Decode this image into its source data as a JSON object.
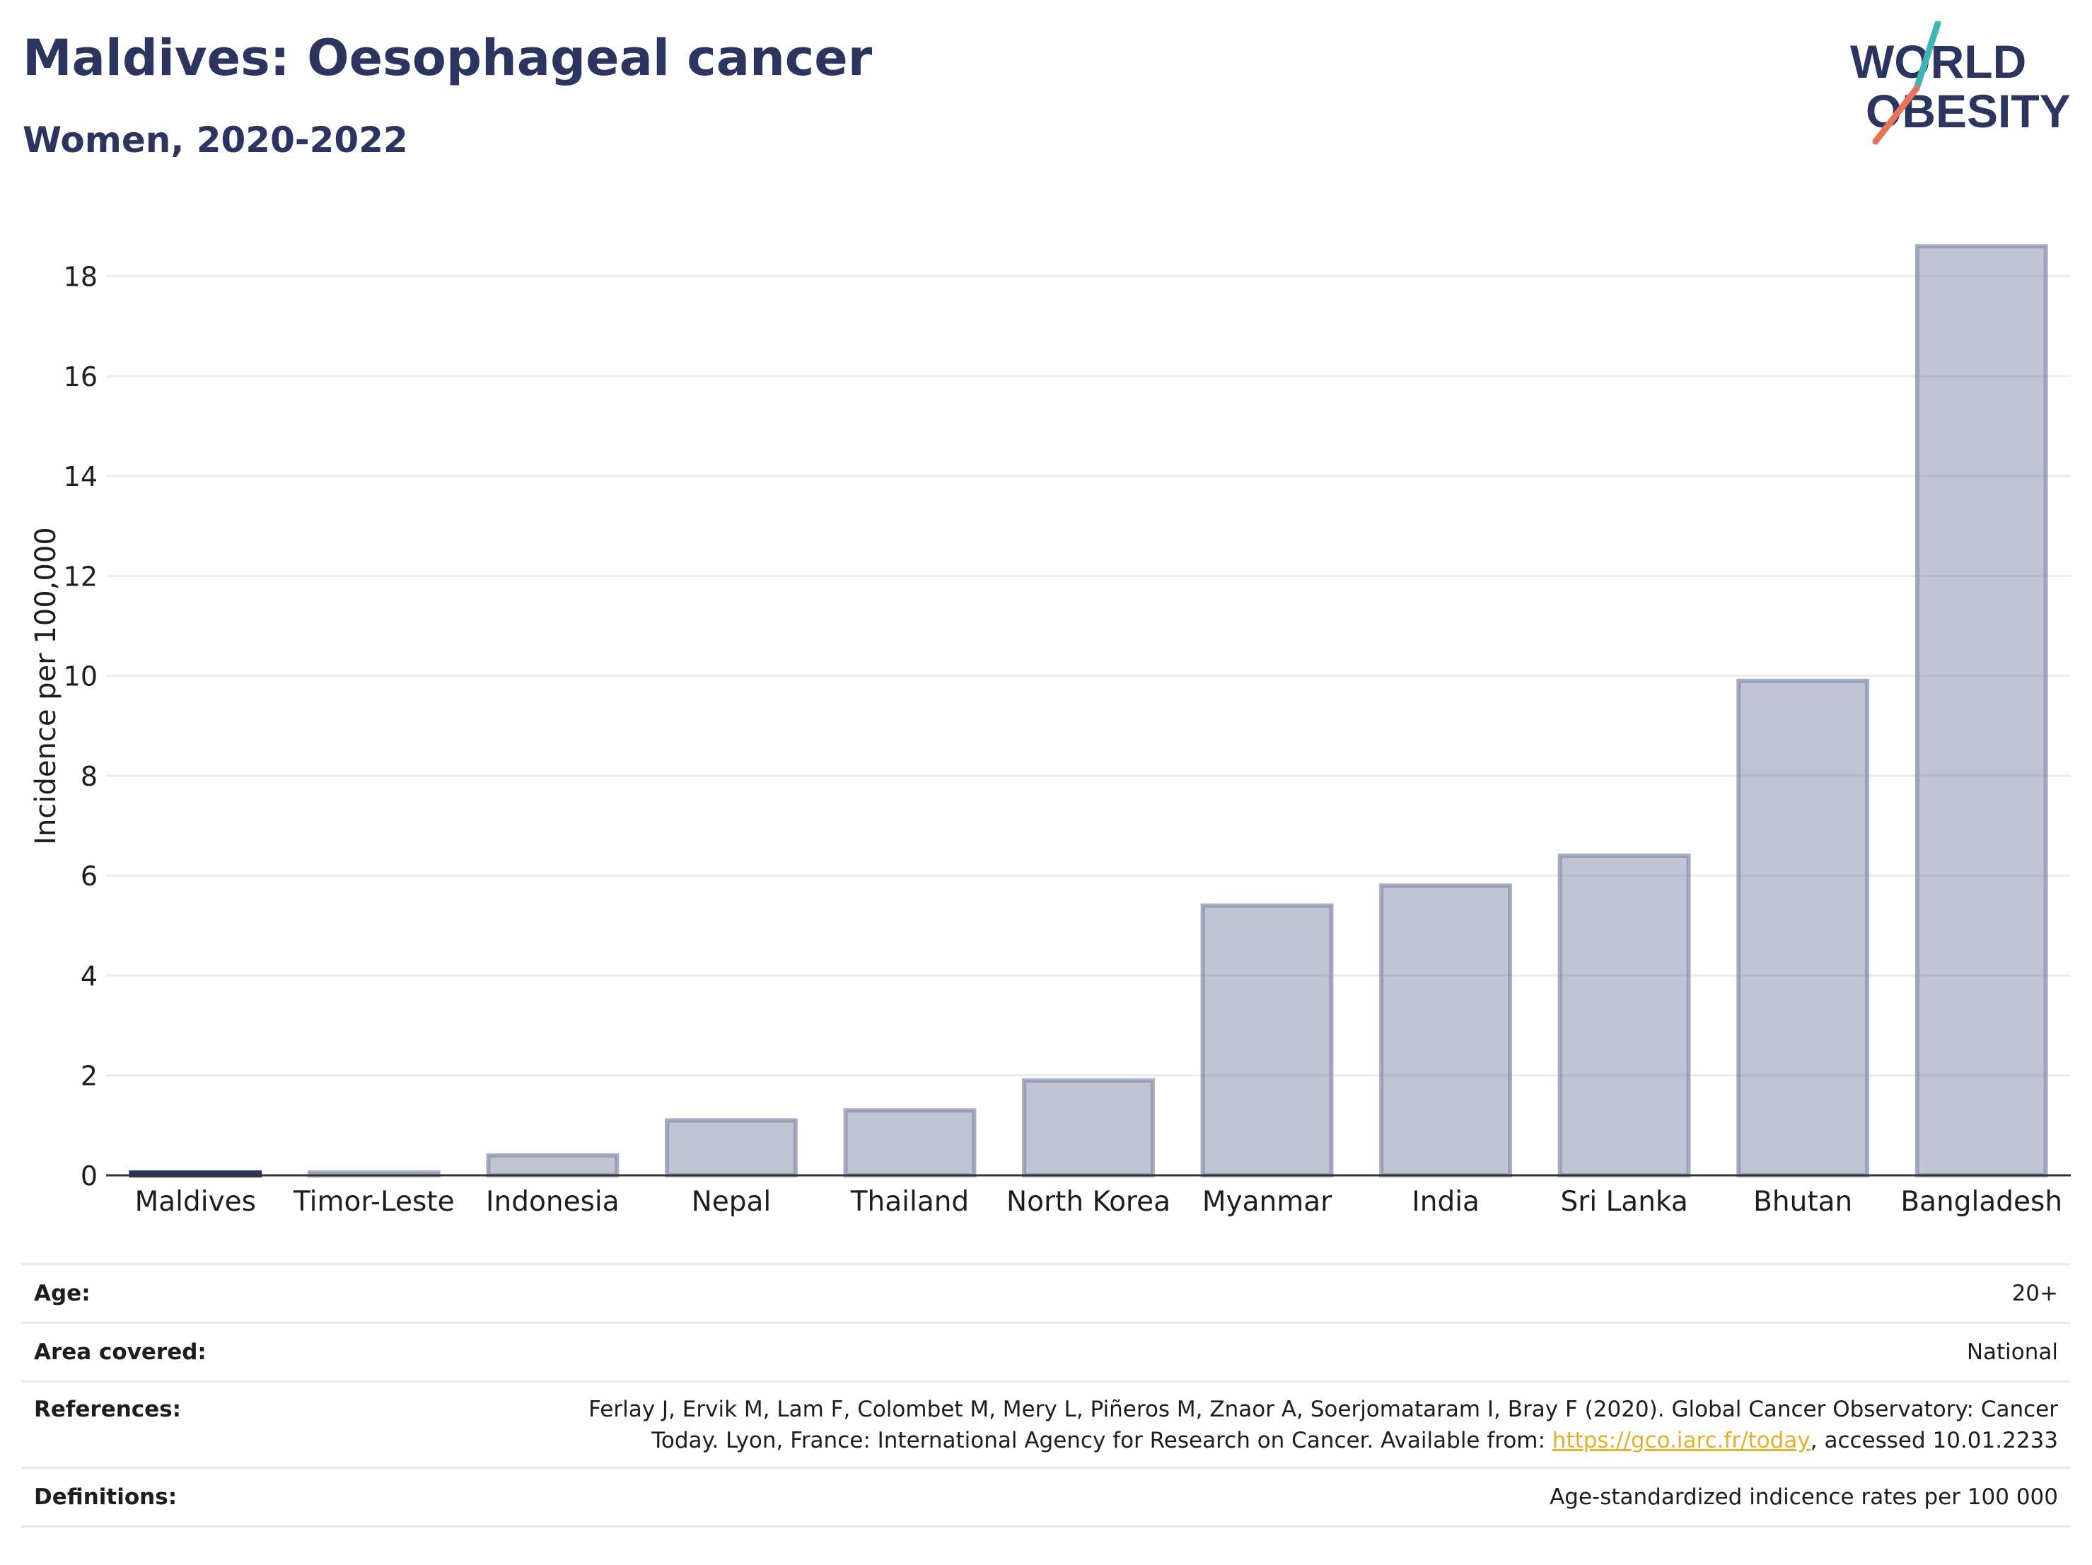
{
  "header": {
    "title": "Maldives: Oesophageal cancer",
    "subtitle": "Women, 2020-2022"
  },
  "logo": {
    "line1": "WORLD",
    "line2": "OBESITY",
    "text_color": "#2b3560",
    "slash_colors": [
      "#3fb5b5",
      "#e8735a"
    ]
  },
  "chart_data": {
    "type": "bar",
    "title": "Maldives: Oesophageal cancer",
    "subtitle": "Women, 2020-2022",
    "ylabel": "Incidence per 100,000",
    "xlabel": "",
    "ylim": [
      0,
      19
    ],
    "yticks": [
      0,
      2,
      4,
      6,
      8,
      10,
      12,
      14,
      16,
      18
    ],
    "grid": true,
    "highlight": "Maldives",
    "highlight_color": "#2b3560",
    "bar_color": "#8a91ad",
    "categories": [
      "Maldives",
      "Timor-Leste",
      "Indonesia",
      "Nepal",
      "Thailand",
      "North Korea",
      "Myanmar",
      "India",
      "Sri Lanka",
      "Bhutan",
      "Bangladesh"
    ],
    "values": [
      0.05,
      0.03,
      0.4,
      1.1,
      1.3,
      1.9,
      5.4,
      5.8,
      6.4,
      9.9,
      18.6
    ]
  },
  "meta": {
    "age_label": "Age:",
    "age_value": "20+",
    "area_label": "Area covered:",
    "area_value": "National",
    "references_label": "References:",
    "references_line1": "Ferlay J, Ervik M, Lam F, Colombet M, Mery L, Piñeros M, Znaor A, Soerjomataram I, Bray F (2020). Global Cancer Observatory: Cancer",
    "references_line2_pre": "Today. Lyon, France: International Agency for Research on Cancer. Available from: ",
    "references_link": "https://gco.iarc.fr/today",
    "references_line2_post": ", accessed 10.01.2233",
    "definitions_label": "Definitions:",
    "definitions_value": "Age-standardized indicence rates per 100 000"
  }
}
